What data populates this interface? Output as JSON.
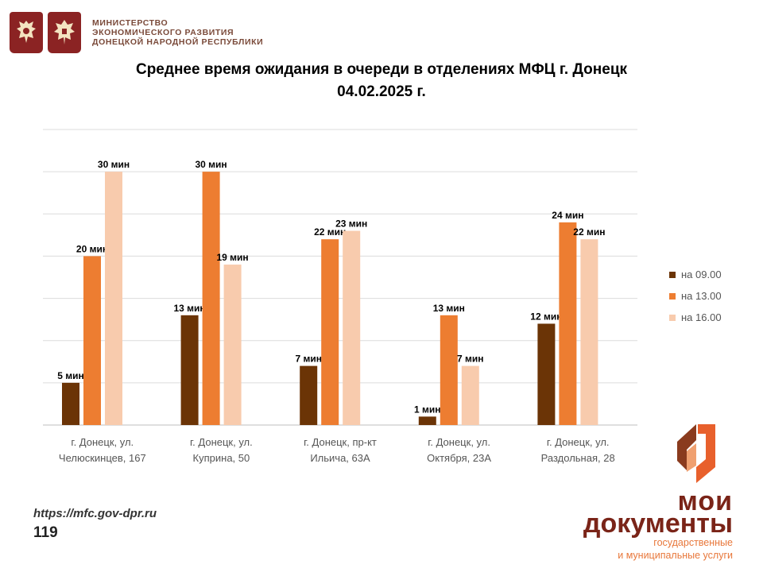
{
  "header": {
    "ministry_lines": [
      "МИНИСТЕРСТВО",
      "ЭКОНОМИЧЕСКОГО РАЗВИТИЯ",
      "ДОНЕЦКОЙ НАРОДНОЙ РЕСПУБЛИКИ"
    ]
  },
  "title_lines": [
    "Среднее время ожидания в очереди в отделениях МФЦ г. Донецк",
    "04.02.2025 г."
  ],
  "chart_data": {
    "type": "bar",
    "categories": [
      [
        "г. Донецк, ул.",
        "Челюскинцев, 167"
      ],
      [
        "г. Донецк, ул.",
        "Куприна, 50"
      ],
      [
        "г. Донецк, пр-кт",
        "Ильича, 63А"
      ],
      [
        "г. Донецк, ул.",
        "Октября, 23А"
      ],
      [
        "г. Донецк, ул.",
        "Раздольная, 28"
      ]
    ],
    "series": [
      {
        "name": "на 09.00",
        "color": "#6b3406",
        "values": [
          5,
          13,
          7,
          1,
          12
        ],
        "labels": [
          "5 мин",
          "13 мин",
          "7 мин",
          "1 мин",
          "12 мин"
        ]
      },
      {
        "name": "на 13.00",
        "color": "#ed7d31",
        "values": [
          20,
          30,
          22,
          13,
          24
        ],
        "labels": [
          "20 мин",
          "30 мин",
          "22 мин",
          "13 мин",
          "24 мин"
        ]
      },
      {
        "name": "на 16.00",
        "color": "#f8cbad",
        "values": [
          30,
          19,
          23,
          7,
          22
        ],
        "labels": [
          "30 мин",
          "19 мин",
          "23 мин",
          "7 мин",
          "22 мин"
        ]
      }
    ],
    "ylim": [
      0,
      35
    ],
    "grid": true,
    "legend": "right"
  },
  "footer": {
    "url": "https://mfc.gov-dpr.ru",
    "page": "119"
  },
  "brand": {
    "line1": "мои",
    "line2": "документы",
    "sub1": "государственные",
    "sub2": "и муниципальные услуги"
  }
}
